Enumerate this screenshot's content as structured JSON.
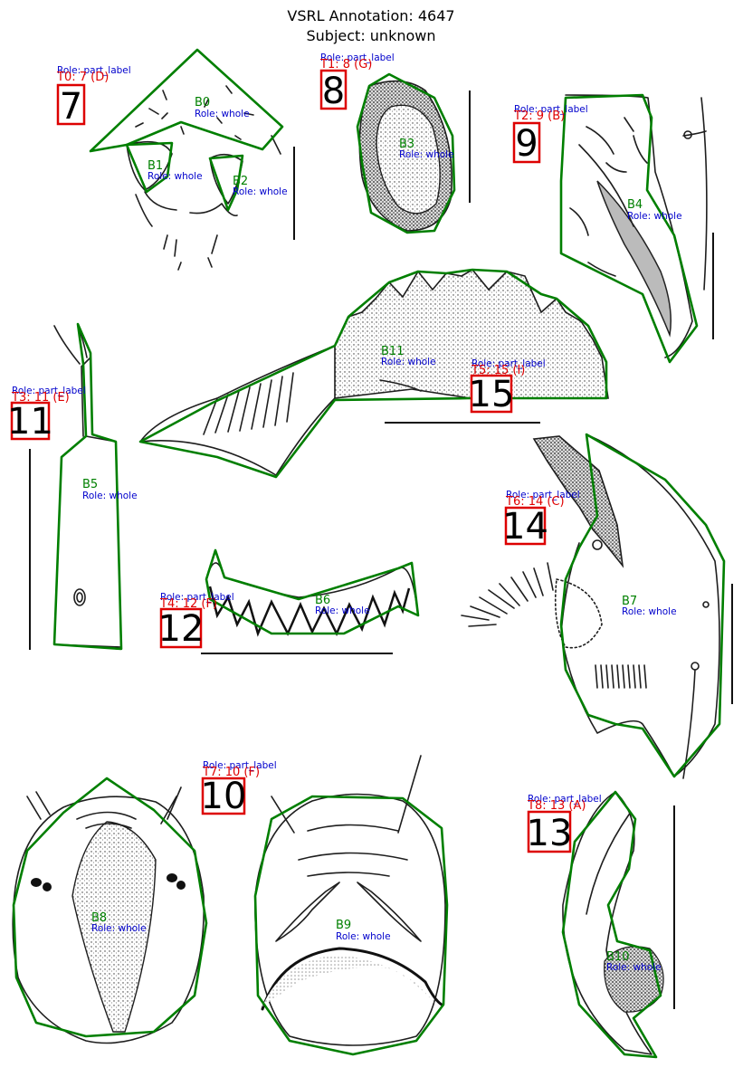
{
  "header": {
    "title_line1": "VSRL Annotation: 4647",
    "title_line2": "Subject: unknown"
  },
  "colors": {
    "polygon": "#007f00",
    "box_name": "#008000",
    "role": "#0000cc",
    "text_label": "#e00000",
    "number_box": "#dd0000"
  },
  "boxes": [
    {
      "name": "B0",
      "role": "Role: whole"
    },
    {
      "name": "B1",
      "role": "Role: whole"
    },
    {
      "name": "B2",
      "role": "Role: whole"
    },
    {
      "name": "B3",
      "role": "Role: whole"
    },
    {
      "name": "B4",
      "role": "Role: whole"
    },
    {
      "name": "B5",
      "role": "Role: whole"
    },
    {
      "name": "B6",
      "role": "Role: whole"
    },
    {
      "name": "B7",
      "role": "Role: whole"
    },
    {
      "name": "B8",
      "role": "Role: whole"
    },
    {
      "name": "B9",
      "role": "Role: whole"
    },
    {
      "name": "B10",
      "role": "Role: whole"
    },
    {
      "name": "B11",
      "role": "Role: whole"
    }
  ],
  "texts": [
    {
      "id": "T0: 7 (D)",
      "role": "Role: part_label",
      "number": "7"
    },
    {
      "id": "T1: 8 (G)",
      "role": "Role: part_label",
      "number": "8"
    },
    {
      "id": "T2: 9 (B)",
      "role": "Role: part_label",
      "number": "9"
    },
    {
      "id": "T3: 11 (E)",
      "role": "Role: part_label",
      "number": "11"
    },
    {
      "id": "T4: 12 (F)",
      "role": "Role: part_label",
      "number": "12"
    },
    {
      "id": "T5: 15 (I)",
      "role": "Role: part_label",
      "number": "15"
    },
    {
      "id": "T6: 14 (C)",
      "role": "Role: part_label",
      "number": "14"
    },
    {
      "id": "T7: 10 (F)",
      "role": "Role: part_label",
      "number": "10"
    },
    {
      "id": "T8: 13 (A)",
      "role": "Role: part_label",
      "number": "13"
    }
  ]
}
